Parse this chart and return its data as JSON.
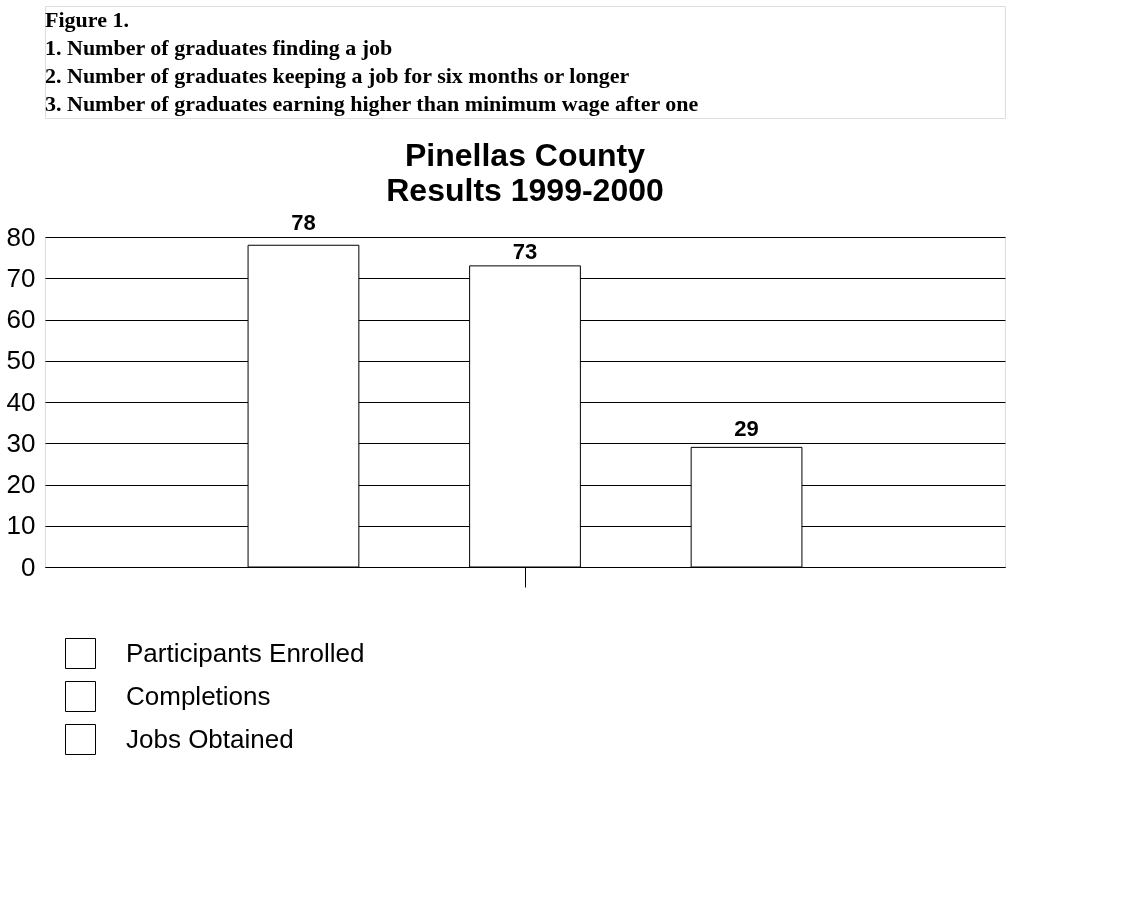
{
  "chart_data": {
    "type": "bar",
    "title": "Pinellas County",
    "subtitle": "Results 1999-2000",
    "annotations": [
      "Figure 1.",
      "1.  Number of graduates finding a job",
      "2.  Number of graduates keeping a job for six months or longer",
      "3.  Number of graduates earning higher than minimum wage after one"
    ],
    "categories": [
      null
    ],
    "series": [
      {
        "name": "Participants Enrolled",
        "color": "#ffffff",
        "values": [
          78
        ]
      },
      {
        "name": "Completions",
        "color": "#ffffff",
        "values": [
          73
        ]
      },
      {
        "name": "Jobs Obtained",
        "color": "#ffffff",
        "values": [
          29
        ]
      }
    ],
    "ylim": [
      0,
      80
    ],
    "yticks": [
      0,
      10,
      20,
      30,
      40,
      50,
      60,
      70,
      80
    ],
    "grid": "y",
    "legend": "bottom",
    "data_labels": true
  }
}
